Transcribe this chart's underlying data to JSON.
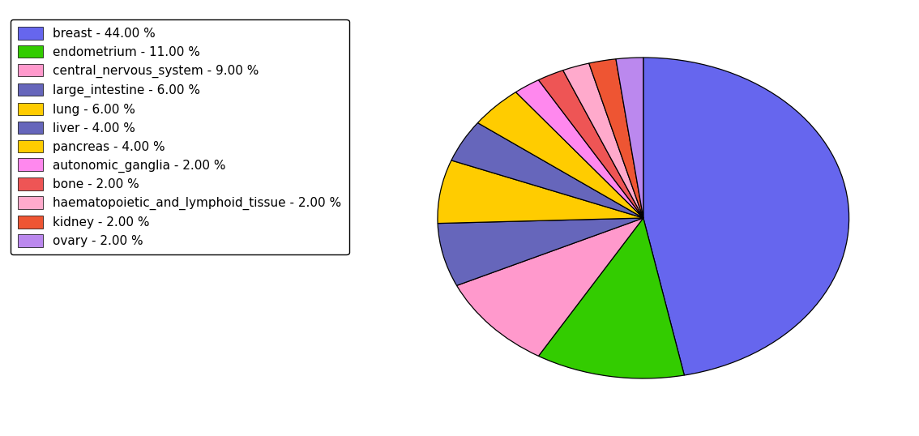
{
  "labels": [
    "breast",
    "endometrium",
    "central_nervous_system",
    "large_intestine",
    "lung",
    "liver",
    "pancreas",
    "autonomic_ganglia",
    "bone",
    "haematopoietic_and_lymphoid_tissue",
    "kidney",
    "ovary"
  ],
  "values": [
    44,
    11,
    9,
    6,
    6,
    4,
    4,
    2,
    2,
    2,
    2,
    2
  ],
  "colors": [
    "#6666ee",
    "#33cc00",
    "#ff99cc",
    "#6666bb",
    "#ffcc00",
    "#6666bb",
    "#ffcc00",
    "#ff88ee",
    "#ee5555",
    "#ffaacc",
    "#ee5533",
    "#bb88ee"
  ],
  "legend_labels": [
    "breast - 44.00 %",
    "endometrium - 11.00 %",
    "central_nervous_system - 9.00 %",
    "large_intestine - 6.00 %",
    "lung - 6.00 %",
    "liver - 4.00 %",
    "pancreas - 4.00 %",
    "autonomic_ganglia - 2.00 %",
    "bone - 2.00 %",
    "haematopoietic_and_lymphoid_tissue - 2.00 %",
    "kidney - 2.00 %",
    "ovary - 2.00 %"
  ],
  "legend_colors": [
    "#6666ee",
    "#33cc00",
    "#ff99cc",
    "#6666bb",
    "#ffcc00",
    "#6666bb",
    "#ffcc00",
    "#ff88ee",
    "#ee5555",
    "#ffaacc",
    "#ee5533",
    "#bb88ee"
  ],
  "startangle": 90,
  "figsize": [
    11.34,
    5.38
  ],
  "dpi": 100
}
